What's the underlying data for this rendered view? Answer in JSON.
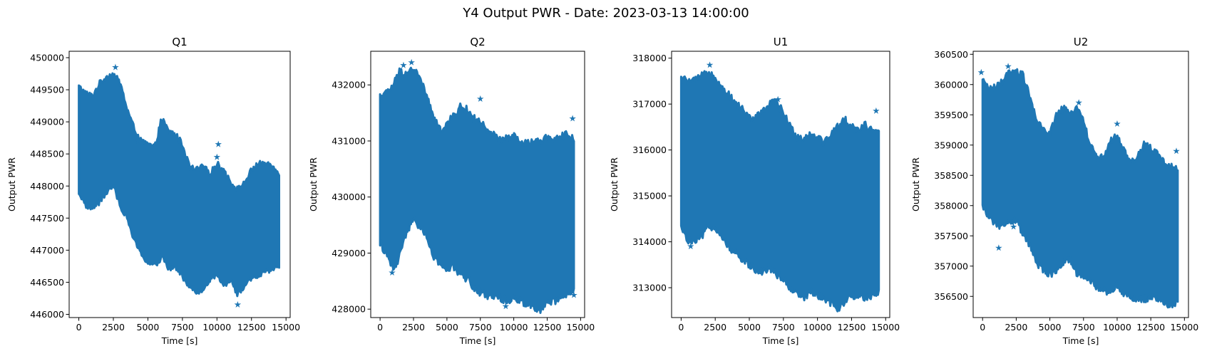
{
  "figure": {
    "suptitle": "Y4 Output PWR - Date: 2023-03-13 14:00:00",
    "marker_color": "#1f77b4",
    "marker": "star"
  },
  "chart_data": [
    {
      "type": "scatter",
      "title": "Q1",
      "xlabel": "Time [s]",
      "ylabel": "Output PWR",
      "xlim": [
        -700,
        15300
      ],
      "ylim": [
        445950,
        450100
      ],
      "xticks": [
        0,
        2500,
        5000,
        7500,
        10000,
        12500,
        15000
      ],
      "xtick_labels": [
        "0",
        "2500",
        "5000",
        "7500",
        "10000",
        "12500",
        "15000"
      ],
      "yticks": [
        446000,
        446500,
        447000,
        447500,
        448000,
        448500,
        449000,
        449500,
        450000
      ],
      "ytick_labels": [
        "446000",
        "446500",
        "447000",
        "447500",
        "448000",
        "448500",
        "449000",
        "449500",
        "450000"
      ],
      "band_x": [
        0,
        500,
        1000,
        1500,
        2000,
        2500,
        3000,
        3500,
        4000,
        4500,
        5000,
        5500,
        6000,
        6500,
        7000,
        7500,
        8000,
        8500,
        9000,
        9500,
        10000,
        10500,
        11000,
        11500,
        12000,
        12500,
        13000,
        13500,
        14000,
        14500
      ],
      "band_upper": [
        449550,
        449450,
        449400,
        449600,
        449700,
        449750,
        449600,
        449200,
        448900,
        448700,
        448650,
        448600,
        449050,
        448850,
        448800,
        448650,
        448300,
        448250,
        448300,
        448200,
        448350,
        448250,
        448050,
        447950,
        448050,
        448250,
        448350,
        448350,
        448300,
        448200
      ],
      "band_lower": [
        447900,
        447700,
        447650,
        447750,
        447900,
        448000,
        447700,
        447500,
        447150,
        446950,
        446800,
        446750,
        446900,
        446700,
        446750,
        446600,
        446450,
        446350,
        446400,
        446550,
        446600,
        446450,
        446550,
        446300,
        446450,
        446550,
        446600,
        446650,
        446700,
        446750
      ],
      "outliers": [
        [
          2650,
          449850
        ],
        [
          10100,
          448650
        ],
        [
          10000,
          448450
        ],
        [
          11500,
          446150
        ],
        [
          4300,
          448700
        ]
      ]
    },
    {
      "type": "scatter",
      "title": "Q2",
      "xlabel": "Time [s]",
      "ylabel": "Output PWR",
      "xlim": [
        -700,
        15300
      ],
      "ylim": [
        427850,
        432600
      ],
      "xticks": [
        0,
        2500,
        5000,
        7500,
        10000,
        12500,
        15000
      ],
      "xtick_labels": [
        "0",
        "2500",
        "5000",
        "7500",
        "10000",
        "12500",
        "15000"
      ],
      "yticks": [
        428000,
        429000,
        430000,
        431000,
        432000
      ],
      "ytick_labels": [
        "428000",
        "429000",
        "430000",
        "431000",
        "432000"
      ],
      "band_x": [
        0,
        500,
        1000,
        1500,
        2000,
        2500,
        3000,
        3500,
        4000,
        4500,
        5000,
        5500,
        6000,
        6500,
        7000,
        7500,
        8000,
        8500,
        9000,
        9500,
        10000,
        10500,
        11000,
        11500,
        12000,
        12500,
        13000,
        13500,
        14000,
        14500
      ],
      "band_upper": [
        431800,
        431850,
        432000,
        432250,
        432200,
        432300,
        432100,
        431800,
        431400,
        431200,
        431300,
        431450,
        431600,
        431550,
        431400,
        431350,
        431150,
        431100,
        431000,
        431050,
        431100,
        430950,
        430950,
        431000,
        430950,
        431100,
        431000,
        431050,
        431150,
        431000
      ],
      "band_lower": [
        429200,
        428950,
        428700,
        428950,
        429400,
        429600,
        429450,
        429300,
        428900,
        428800,
        428700,
        428750,
        428600,
        428550,
        428400,
        428300,
        428250,
        428250,
        428200,
        428150,
        428200,
        428150,
        428100,
        428050,
        428000,
        428100,
        428150,
        428200,
        428250,
        428300
      ],
      "outliers": [
        [
          900,
          428650
        ],
        [
          2350,
          432400
        ],
        [
          1750,
          432350
        ],
        [
          7500,
          431750
        ],
        [
          14400,
          431400
        ],
        [
          14500,
          428250
        ],
        [
          9400,
          428050
        ]
      ]
    },
    {
      "type": "scatter",
      "title": "U1",
      "xlabel": "Time [s]",
      "ylabel": "Output PWR",
      "xlim": [
        -700,
        15300
      ],
      "ylim": [
        312350,
        318150
      ],
      "xticks": [
        0,
        2500,
        5000,
        7500,
        10000,
        12500,
        15000
      ],
      "xtick_labels": [
        "0",
        "2500",
        "5000",
        "7500",
        "10000",
        "12500",
        "15000"
      ],
      "yticks": [
        313000,
        314000,
        315000,
        316000,
        317000,
        318000
      ],
      "ytick_labels": [
        "313000",
        "314000",
        "315000",
        "316000",
        "317000",
        "318000"
      ],
      "band_x": [
        0,
        500,
        1000,
        1500,
        2000,
        2500,
        3000,
        3500,
        4000,
        4500,
        5000,
        5500,
        6000,
        6500,
        7000,
        7500,
        8000,
        8500,
        9000,
        9500,
        10000,
        10500,
        11000,
        11500,
        12000,
        12500,
        13000,
        13500,
        14000,
        14500
      ],
      "band_upper": [
        317550,
        317500,
        317500,
        317600,
        317700,
        317600,
        317350,
        317200,
        317000,
        316900,
        316700,
        316700,
        316850,
        317000,
        317050,
        316800,
        316500,
        316300,
        316250,
        316350,
        316300,
        316150,
        316350,
        316500,
        316650,
        316500,
        316450,
        316550,
        316400,
        316350
      ],
      "band_lower": [
        314300,
        314050,
        314000,
        314100,
        314350,
        314300,
        314050,
        313900,
        313750,
        313600,
        313500,
        313400,
        313350,
        313450,
        313300,
        313200,
        313000,
        312850,
        312800,
        312900,
        312850,
        312750,
        312650,
        312550,
        312650,
        312800,
        312850,
        312800,
        312800,
        312900
      ],
      "outliers": [
        [
          2100,
          317850
        ],
        [
          11500,
          312550
        ],
        [
          14300,
          316850
        ],
        [
          7100,
          317100
        ],
        [
          700,
          313900
        ]
      ]
    },
    {
      "type": "scatter",
      "title": "U2",
      "xlabel": "Time [s]",
      "ylabel": "Output PWR",
      "xlim": [
        -700,
        15300
      ],
      "ylim": [
        356150,
        360550
      ],
      "xticks": [
        0,
        2500,
        5000,
        7500,
        10000,
        12500,
        15000
      ],
      "xtick_labels": [
        "0",
        "2500",
        "5000",
        "7500",
        "10000",
        "12500",
        "15000"
      ],
      "yticks": [
        356500,
        357000,
        357500,
        358000,
        358500,
        359000,
        359500,
        360000,
        360500
      ],
      "ytick_labels": [
        "356500",
        "357000",
        "357500",
        "358000",
        "358500",
        "359000",
        "359500",
        "360000",
        "360500"
      ],
      "band_x": [
        0,
        500,
        1000,
        1500,
        2000,
        2500,
        3000,
        3500,
        4000,
        4500,
        5000,
        5500,
        6000,
        6500,
        7000,
        7500,
        8000,
        8500,
        9000,
        9500,
        10000,
        10500,
        11000,
        11500,
        12000,
        12500,
        13000,
        13500,
        14000,
        14500
      ],
      "band_upper": [
        360050,
        359950,
        359950,
        360050,
        360200,
        360200,
        360150,
        359800,
        359400,
        359250,
        359200,
        359500,
        359600,
        359500,
        359650,
        359400,
        359000,
        358800,
        358800,
        359050,
        359150,
        358900,
        358700,
        358800,
        359000,
        358950,
        358850,
        358700,
        358650,
        358600
      ],
      "band_lower": [
        358000,
        357800,
        357700,
        357650,
        357750,
        357750,
        357550,
        357350,
        357050,
        356950,
        356850,
        356950,
        357050,
        357100,
        356900,
        356850,
        356750,
        356650,
        356600,
        356550,
        356700,
        356550,
        356500,
        356450,
        356450,
        356500,
        356450,
        356400,
        356350,
        356400
      ],
      "outliers": [
        [
          -100,
          360200
        ],
        [
          1900,
          360300
        ],
        [
          1200,
          357300
        ],
        [
          2300,
          357650
        ],
        [
          10000,
          359350
        ],
        [
          7150,
          359700
        ],
        [
          14400,
          358900
        ]
      ]
    }
  ]
}
